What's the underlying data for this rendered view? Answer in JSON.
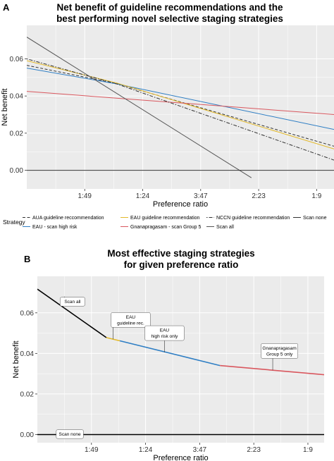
{
  "charts": [
    {
      "panel": "A",
      "chart_data": {
        "type": "line",
        "title": "Net benefit of guideline recommendations and the best performing novel selective staging strategies",
        "title_lines": [
          "Net benefit of guideline recommendations and the",
          "best performing novel selective staging strategies"
        ],
        "xlabel": "Preference ratio",
        "ylabel": "Net benefit",
        "x_tick_labels": [
          "1:49",
          "1:24",
          "3:47",
          "2:23",
          "1:9"
        ],
        "x_tick_positions": [
          0.02,
          0.04,
          0.06,
          0.08,
          0.1
        ],
        "y_tick_labels": [
          "0.00",
          "0.02",
          "0.04",
          "0.06"
        ],
        "xlim": [
          0.0,
          0.106
        ],
        "ylim": [
          -0.01,
          0.078
        ],
        "grid": true,
        "legend_title": "Strategy",
        "legend_position": "bottom",
        "series": [
          {
            "name": "AUA guideline reccommendation",
            "color": "#333333",
            "dash": "dash",
            "x": [
              0.0,
              0.031,
              0.106
            ],
            "y": [
              0.0565,
              0.0467,
              0.013
            ]
          },
          {
            "name": "EAU - scan high risk",
            "color": "#2e7ec4",
            "dash": "solid",
            "x": [
              0.0,
              0.031,
              0.106
            ],
            "y": [
              0.055,
              0.0465,
              0.022
            ]
          },
          {
            "name": "EAU guideline recommendation",
            "color": "#e3b92a",
            "dash": "solid",
            "x": [
              0.0,
              0.031,
              0.106
            ],
            "y": [
              0.059,
              0.047,
              0.0115
            ]
          },
          {
            "name": "Gnanapragasam - scan Group 5",
            "color": "#d9575e",
            "dash": "solid",
            "x": [
              0.0,
              0.106
            ],
            "y": [
              0.0425,
              0.03
            ]
          },
          {
            "name": "NCCN guideline recommendation",
            "color": "#333333",
            "dash": "dotdash",
            "x": [
              0.0,
              0.031,
              0.106
            ],
            "y": [
              0.06,
              0.0465,
              0.0055
            ]
          },
          {
            "name": "Scan all",
            "color": "#555555",
            "dash": "solid",
            "x": [
              0.0,
              0.0775
            ],
            "y": [
              0.0717,
              -0.004
            ]
          },
          {
            "name": "Scan none",
            "color": "#333333",
            "dash": "solid",
            "x": [
              0.0,
              0.106
            ],
            "y": [
              0.0,
              0.0
            ]
          }
        ]
      }
    },
    {
      "panel": "B",
      "chart_data": {
        "type": "line",
        "title": "Most effective staging strategies for given preference ratio",
        "title_lines": [
          "Most effective staging strategies",
          "for given preference ratio"
        ],
        "xlabel": "Preference ratio",
        "ylabel": "Net benefit",
        "x_tick_labels": [
          "1:49",
          "1:24",
          "3:47",
          "2:23",
          "1:9"
        ],
        "x_tick_positions": [
          0.02,
          0.04,
          0.06,
          0.08,
          0.1
        ],
        "y_tick_labels": [
          "0.00",
          "0.02",
          "0.04",
          "0.06"
        ],
        "xlim": [
          0.0,
          0.106
        ],
        "ylim": [
          -0.004,
          0.078
        ],
        "grid": true,
        "series": [
          {
            "name": "Scan all",
            "color": "#000000",
            "x": [
              0.0,
              0.0255
            ],
            "y": [
              0.0717,
              0.0478
            ]
          },
          {
            "name": "EAU guideline rec.",
            "color": "#e3b92a",
            "x": [
              0.0255,
              0.0305
            ],
            "y": [
              0.0478,
              0.0462
            ]
          },
          {
            "name": "EAU high risk only",
            "color": "#2e7ec4",
            "x": [
              0.0305,
              0.0675
            ],
            "y": [
              0.0462,
              0.034
            ]
          },
          {
            "name": "Gnanapragasam Group 5 only",
            "color": "#d9575e",
            "x": [
              0.0675,
              0.106
            ],
            "y": [
              0.034,
              0.0295
            ]
          },
          {
            "name": "Scan none",
            "color": "#000000",
            "x": [
              0.0,
              0.106
            ],
            "y": [
              0.0,
              0.0
            ]
          }
        ],
        "annotations": [
          {
            "lines": [
              "Scan all"
            ],
            "x": 0.013,
            "y": 0.0655,
            "ax": 0.01,
            "ay": 0.068
          },
          {
            "lines": [
              "EAU",
              "guideline rec."
            ],
            "x": 0.0345,
            "y": 0.0565,
            "ax": 0.028,
            "ay": 0.047
          },
          {
            "lines": [
              "EAU",
              "high risk only"
            ],
            "x": 0.047,
            "y": 0.05,
            "ax": 0.047,
            "ay": 0.0405
          },
          {
            "lines": [
              "Gnanapragasam",
              "Group 5 only"
            ],
            "x": 0.0895,
            "y": 0.0412,
            "ax": 0.087,
            "ay": 0.0317
          },
          {
            "lines": [
              "Scan none"
            ],
            "x": 0.012,
            "y": 0.0002,
            "ax": 0.012,
            "ay": 0.0
          }
        ]
      }
    }
  ]
}
